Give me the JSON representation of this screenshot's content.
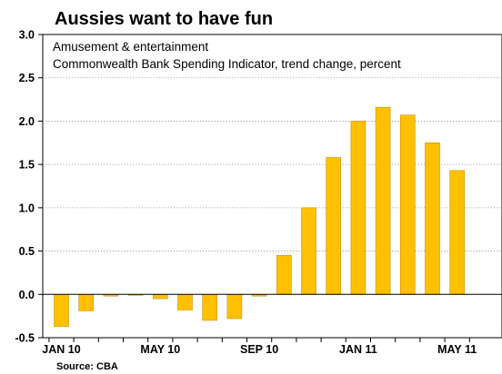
{
  "chart_data": {
    "type": "bar",
    "title": "Aussies want to have fun",
    "subtitle_lines": [
      "Amusement & entertainment",
      "Commonwealth Bank Spending Indicator, trend change, percent"
    ],
    "source": "Source: CBA",
    "categories": [
      "Jan 10",
      "Feb 10",
      "Mar 10",
      "Apr 10",
      "May 10",
      "Jun 10",
      "Jul 10",
      "Aug 10",
      "Sep 10",
      "Oct 10",
      "Nov 10",
      "Dec 10",
      "Jan 11",
      "Feb 11",
      "Mar 11",
      "Apr 11",
      "May 11"
    ],
    "values": [
      -0.37,
      -0.19,
      -0.02,
      0.0,
      -0.05,
      -0.18,
      -0.3,
      -0.28,
      -0.02,
      0.45,
      1.0,
      1.58,
      2.0,
      2.16,
      2.07,
      1.75,
      1.43
    ],
    "x_tick_labels": [
      {
        "index": 0,
        "label": "JAN 10"
      },
      {
        "index": 4,
        "label": "MAY 10"
      },
      {
        "index": 8,
        "label": "SEP 10"
      },
      {
        "index": 12,
        "label": "JAN 11"
      },
      {
        "index": 16,
        "label": "MAY 11"
      }
    ],
    "y_ticks": [
      "3.0",
      "2.5",
      "2.0",
      "1.5",
      "1.0",
      "0.5",
      "0.0",
      "-0.5"
    ],
    "ylim": [
      -0.5,
      3.0
    ],
    "xlabel": "",
    "ylabel": "",
    "grid": true,
    "bar_color": "#FFC000",
    "bar_edge_color": "#C89400"
  }
}
